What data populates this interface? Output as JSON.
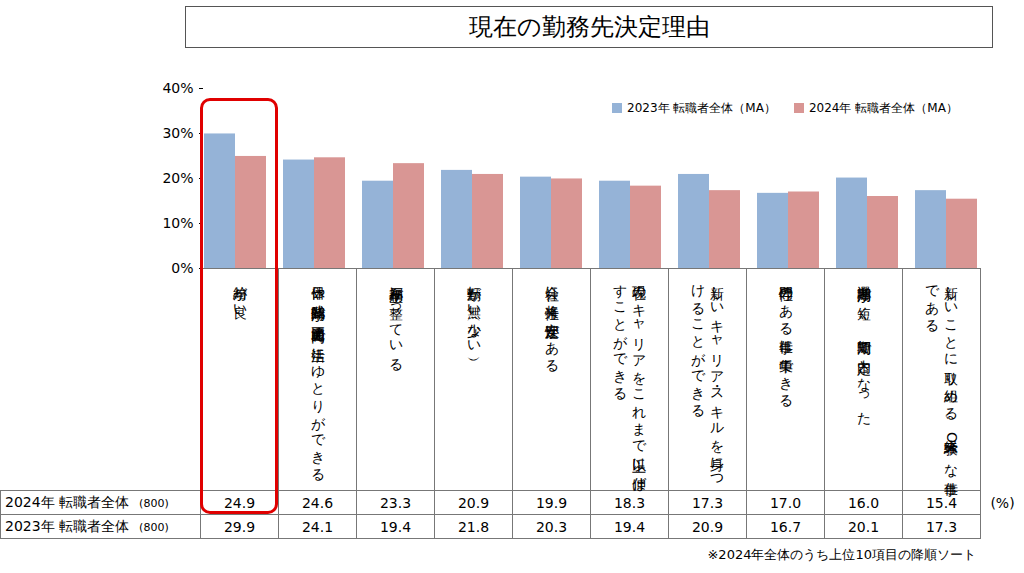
{
  "chart_data": {
    "type": "bar",
    "title": "現在の勤務先決定理由",
    "categories": [
      "給与が良い",
      "休日や残業時間が適正範囲内で生活にゆとりができる",
      "福利厚生が整っている",
      "転勤が無い（少ない）",
      "会社に将来性、安定性がある",
      "現在のキャリアをこれまで以上に伸ばすことができる",
      "新しいキャリア・スキルを身につけることができる",
      "専門性のある仕事に集中できる",
      "選考期間が短く、短期間で内定となった",
      "新しいことに取り組める、未経験OKな仕事である"
    ],
    "series": [
      {
        "name": "2023年 転職者全体（MA）",
        "color": "#95b3d7",
        "row_label": "2023年 転職者全体",
        "row_n": "(800)",
        "values": [
          29.9,
          24.1,
          19.4,
          21.8,
          20.3,
          19.4,
          20.9,
          16.7,
          20.1,
          17.3
        ]
      },
      {
        "name": "2024年 転職者全体（MA）",
        "color": "#d99694",
        "row_label": "2024年 転職者全体",
        "row_n": "(800)",
        "values": [
          24.9,
          24.6,
          23.3,
          20.9,
          19.9,
          18.3,
          17.3,
          17.0,
          16.0,
          15.4
        ]
      }
    ],
    "ylim": [
      0,
      40
    ],
    "yticks": [
      {
        "value": 0,
        "label": "0%"
      },
      {
        "value": 10,
        "label": "10%"
      },
      {
        "value": 20,
        "label": "20%"
      },
      {
        "value": 30,
        "label": "30%"
      },
      {
        "value": 40,
        "label": "40%"
      }
    ],
    "grid": false,
    "legend": "top-right",
    "table_unit": "(%)",
    "highlight": "給与が良い",
    "note": "※2024年全体のうち上位10項目の降順ソート"
  }
}
